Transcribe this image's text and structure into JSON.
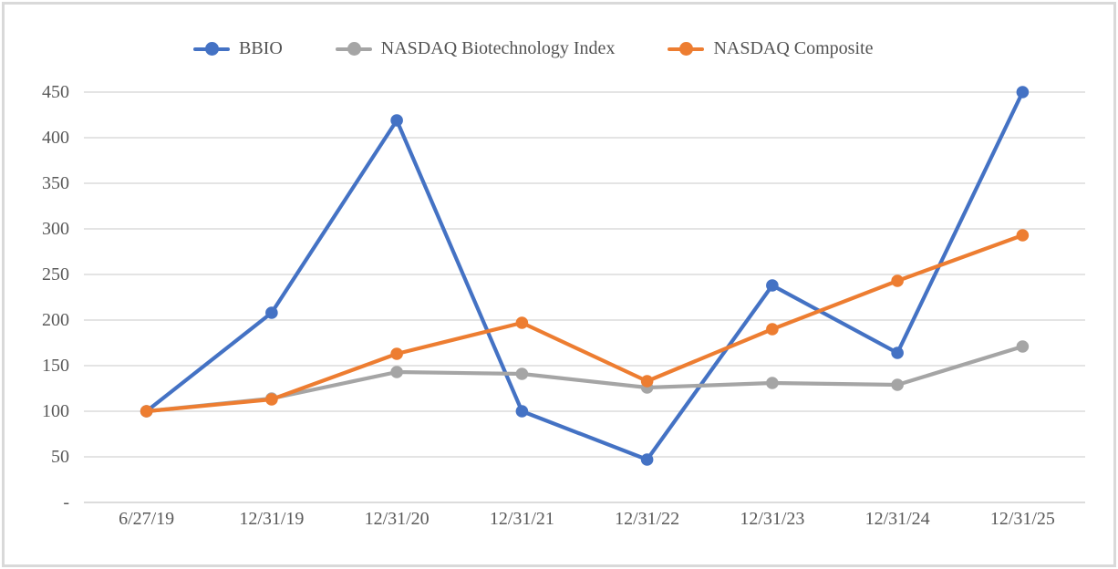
{
  "chart_data": {
    "type": "line",
    "title": "",
    "legend_position": "top",
    "grid": true,
    "categories": [
      "6/27/19",
      "12/31/19",
      "12/31/20",
      "12/31/21",
      "12/31/22",
      "12/31/23",
      "12/31/24",
      "12/31/25"
    ],
    "series": [
      {
        "name": "BBIO",
        "color": "#4472C4",
        "values": [
          100,
          208,
          419,
          100,
          47,
          238,
          164,
          450
        ]
      },
      {
        "name": "NASDAQ Biotechnology Index",
        "color": "#A5A5A5",
        "values": [
          100,
          114,
          143,
          141,
          126,
          131,
          129,
          171
        ]
      },
      {
        "name": "NASDAQ Composite",
        "color": "#ED7D31",
        "values": [
          100,
          113,
          163,
          197,
          133,
          190,
          243,
          293
        ]
      }
    ],
    "ylim": [
      0,
      450
    ],
    "y_ticks": [
      {
        "label": "-",
        "value": 0
      },
      {
        "label": "50",
        "value": 50
      },
      {
        "label": "100",
        "value": 100
      },
      {
        "label": "150",
        "value": 150
      },
      {
        "label": "200",
        "value": 200
      },
      {
        "label": "250",
        "value": 250
      },
      {
        "label": "300",
        "value": 300
      },
      {
        "label": "350",
        "value": 350
      },
      {
        "label": "400",
        "value": 400
      },
      {
        "label": "450",
        "value": 450
      }
    ],
    "xlabel": "",
    "ylabel": "",
    "gridline_color": "#DBDBDB",
    "axis_line_color": "#D0D0D0",
    "label_color": "#595959"
  }
}
